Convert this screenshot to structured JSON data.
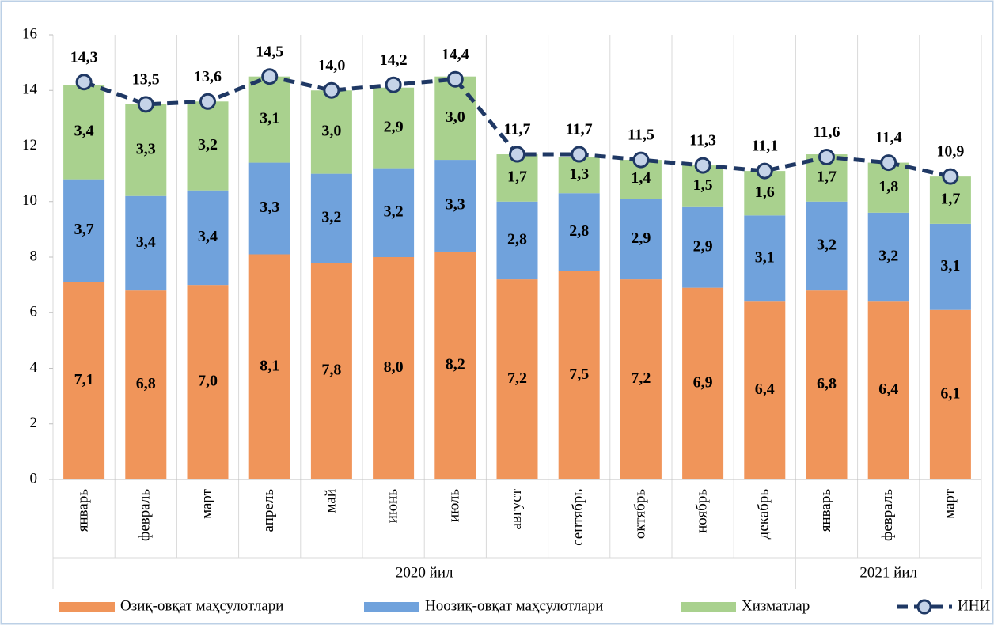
{
  "chart_data": {
    "type": "bar",
    "stacked": true,
    "categories": [
      "январь",
      "февраль",
      "март",
      "апрель",
      "май",
      "июнь",
      "июль",
      "август",
      "сентябрь",
      "октябрь",
      "ноябрь",
      "декабрь",
      "январь",
      "февраль",
      "март"
    ],
    "x_groups": [
      {
        "label": "2020 йил",
        "size": 12
      },
      {
        "label": "2021 йил",
        "size": 3
      }
    ],
    "series": [
      {
        "name": "Озиқ-овқат маҳсулотлари",
        "type": "bar",
        "color": "#f0955a",
        "values": [
          7.1,
          6.8,
          7.0,
          8.1,
          7.8,
          8.0,
          8.2,
          7.2,
          7.5,
          7.2,
          6.9,
          6.4,
          6.8,
          6.4,
          6.1
        ],
        "value_labels": [
          "7,1",
          "6,8",
          "7,0",
          "8,1",
          "7,8",
          "8,0",
          "8,2",
          "7,2",
          "7,5",
          "7,2",
          "6,9",
          "6,4",
          "6,8",
          "6,4",
          "6,1"
        ]
      },
      {
        "name": "Ноозиқ-овқат маҳсулотлари",
        "type": "bar",
        "color": "#70a2dc",
        "values": [
          3.7,
          3.4,
          3.4,
          3.3,
          3.2,
          3.2,
          3.3,
          2.8,
          2.8,
          2.9,
          2.9,
          3.1,
          3.2,
          3.2,
          3.1
        ],
        "value_labels": [
          "3,7",
          "3,4",
          "3,4",
          "3,3",
          "3,2",
          "3,2",
          "3,3",
          "2,8",
          "2,8",
          "2,9",
          "2,9",
          "3,1",
          "3,2",
          "3,2",
          "3,1"
        ]
      },
      {
        "name": "Хизматлар",
        "type": "bar",
        "color": "#a9d18e",
        "values": [
          3.4,
          3.3,
          3.2,
          3.1,
          3.0,
          2.9,
          3.0,
          1.7,
          1.3,
          1.4,
          1.5,
          1.6,
          1.7,
          1.8,
          1.7
        ],
        "value_labels": [
          "3,4",
          "3,3",
          "3,2",
          "3,1",
          "3,0",
          "2,9",
          "3,0",
          "1,7",
          "1,3",
          "1,4",
          "1,5",
          "1,6",
          "1,7",
          "1,8",
          "1,7"
        ]
      },
      {
        "name": "ИНИ",
        "type": "line",
        "color": "#1f3864",
        "values": [
          14.3,
          13.5,
          13.6,
          14.5,
          14.0,
          14.2,
          14.4,
          11.7,
          11.7,
          11.5,
          11.3,
          11.1,
          11.6,
          11.4,
          10.9
        ],
        "value_labels": [
          "14,3",
          "13,5",
          "13,6",
          "14,5",
          "14,0",
          "14,2",
          "14,4",
          "11,7",
          "11,7",
          "11,5",
          "11,3",
          "11,1",
          "11,6",
          "11,4",
          "10,9"
        ]
      }
    ],
    "ylim": [
      0,
      16
    ],
    "yticks": [
      0,
      2,
      4,
      6,
      8,
      10,
      12,
      14,
      16
    ],
    "legend": "bottom"
  }
}
